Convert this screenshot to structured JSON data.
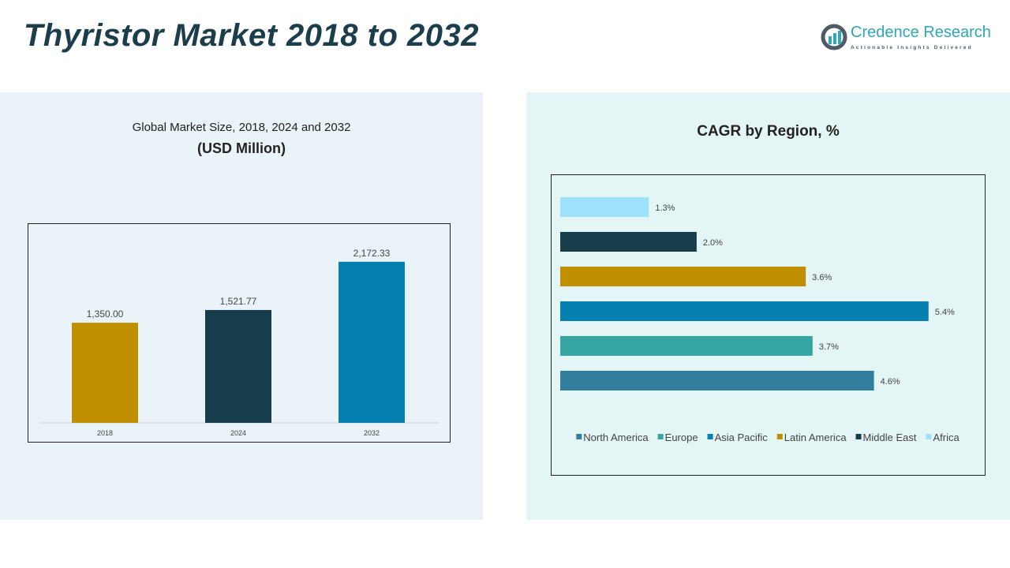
{
  "header": {
    "title": "Thyristor Market 2018 to 2032",
    "logo_text": "Credence Research",
    "logo_tagline": "Actionable Insights Delivered"
  },
  "chart_data": [
    {
      "type": "bar",
      "title": "Global Market Size, 2018, 2024 and 2032",
      "subtitle": "(USD Million)",
      "categories": [
        "2018",
        "2024",
        "2032"
      ],
      "values": [
        1350.0,
        1521.77,
        2172.33
      ],
      "labels": [
        "1,350.00",
        "1,521.77",
        "2,172.33"
      ],
      "colors": [
        "#bf8f00",
        "#173d4a",
        "#0580b0"
      ],
      "ylim": [
        0,
        2500
      ],
      "grid": false
    },
    {
      "type": "bar",
      "orientation": "horizontal",
      "title": "CAGR by Region, %",
      "categories": [
        "North America",
        "Europe",
        "Asia Pacific",
        "Latin America",
        "Middle East",
        "Africa"
      ],
      "values": [
        4.6,
        3.7,
        5.4,
        3.6,
        2.0,
        1.3
      ],
      "labels": [
        "4.6%",
        "3.7%",
        "5.4%",
        "3.6%",
        "2.0%",
        "1.3%"
      ],
      "colors": [
        "#337d9d",
        "#36a6a4",
        "#0580b0",
        "#bf8f00",
        "#173d4a",
        "#9ee1fa"
      ],
      "legend": "bottom",
      "xlim": [
        0,
        5.9
      ],
      "grid": false
    }
  ]
}
